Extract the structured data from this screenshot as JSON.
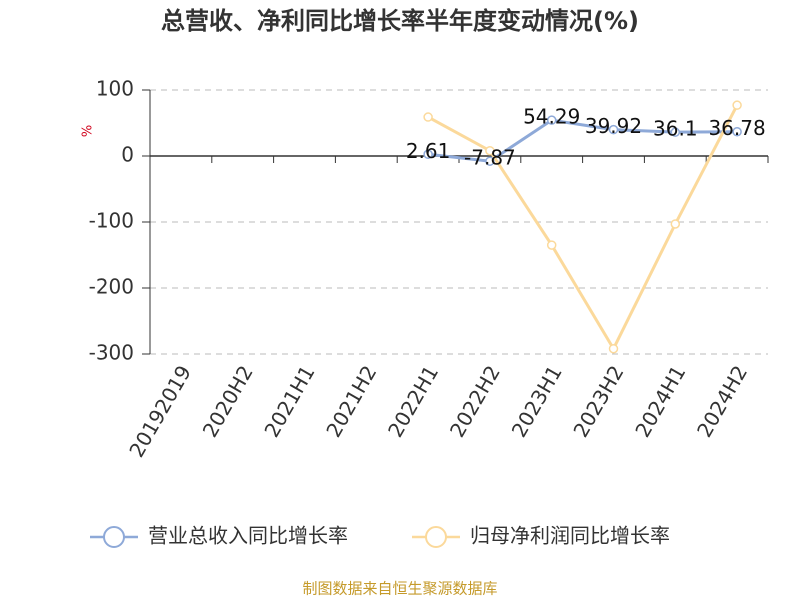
{
  "chart_data": {
    "type": "line",
    "title": "总营收、净利同比增长率半年度变动情况(%)",
    "y_label": "%",
    "categories": [
      "20192019",
      "2020H2",
      "2021H1",
      "2021H2",
      "2022H1",
      "2022H2",
      "2023H1",
      "2023H2",
      "2024H1",
      "2024H2"
    ],
    "series": [
      {
        "name": "营业总收入同比增长率",
        "color": "#8ea9d8",
        "values": [
          null,
          null,
          null,
          null,
          2.61,
          -7.87,
          54.29,
          39.92,
          36.1,
          36.78
        ]
      },
      {
        "name": "归母净利润同比增长率",
        "color": "#fbd99b",
        "values": [
          null,
          null,
          null,
          null,
          59,
          8,
          -135,
          -292,
          -103,
          77
        ]
      }
    ],
    "ylim": [
      -300,
      100
    ],
    "yticks": [
      -300,
      -200,
      -100,
      0,
      100
    ],
    "grid": true,
    "legend": "bottom",
    "source": "制图数据来自恒生聚源数据库"
  }
}
